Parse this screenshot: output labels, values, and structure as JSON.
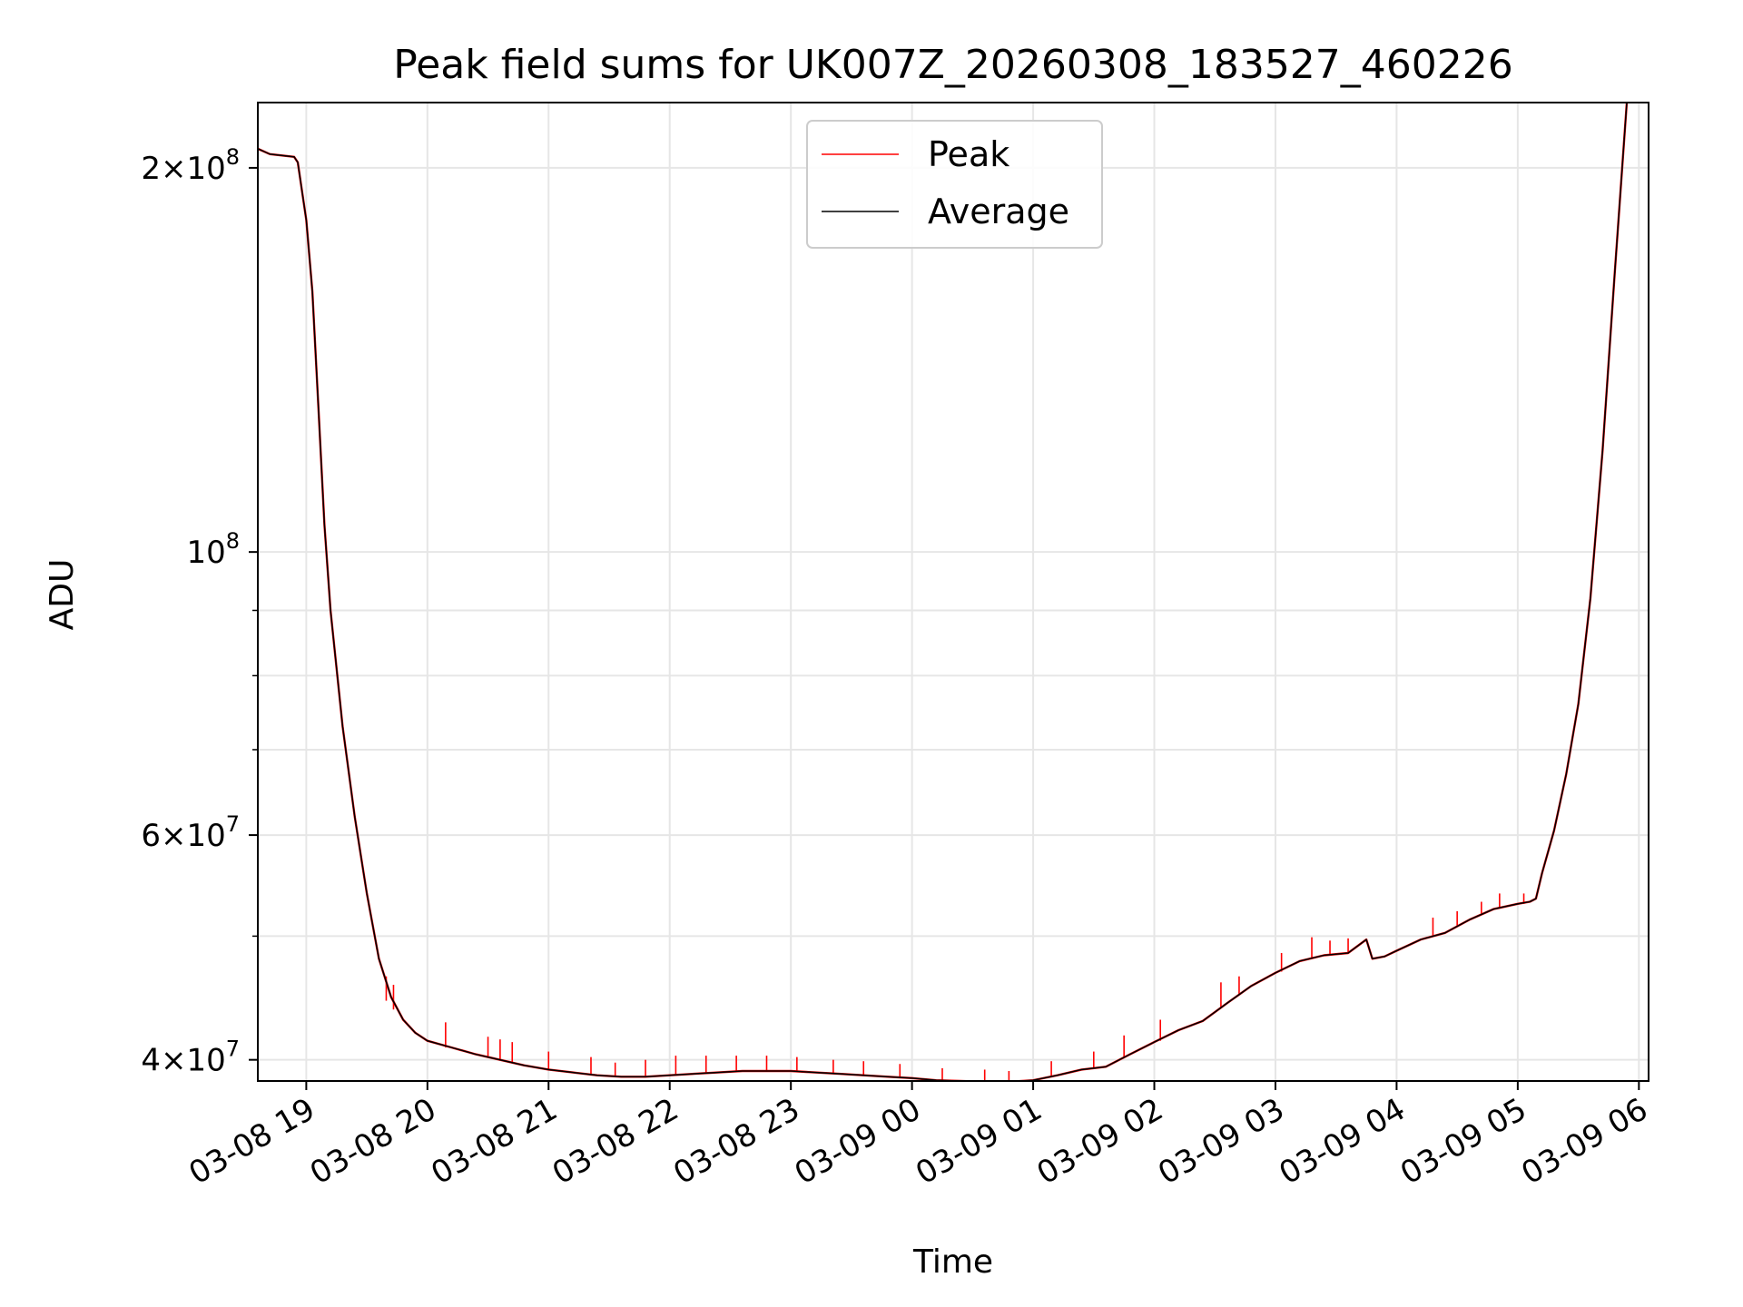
{
  "chart_data": {
    "type": "line",
    "title": "Peak field sums for UK007Z_20260308_183527_460226",
    "xlabel": "Time",
    "ylabel": "ADU",
    "yscale": "log",
    "ylim": [
      38500000,
      225000000
    ],
    "xlim_hours": [
      18.6,
      30.08
    ],
    "grid": true,
    "legend_position": "upper-center",
    "x_ticks": [
      {
        "hour": 19,
        "label": "03-08 19"
      },
      {
        "hour": 20,
        "label": "03-08 20"
      },
      {
        "hour": 21,
        "label": "03-08 21"
      },
      {
        "hour": 22,
        "label": "03-08 22"
      },
      {
        "hour": 23,
        "label": "03-08 23"
      },
      {
        "hour": 24,
        "label": "03-09 00"
      },
      {
        "hour": 25,
        "label": "03-09 01"
      },
      {
        "hour": 26,
        "label": "03-09 02"
      },
      {
        "hour": 27,
        "label": "03-09 03"
      },
      {
        "hour": 28,
        "label": "03-09 04"
      },
      {
        "hour": 29,
        "label": "03-09 05"
      },
      {
        "hour": 30,
        "label": "03-09 06"
      }
    ],
    "y_ticks_major": [
      {
        "value": 40000000,
        "mant": "4",
        "exp": "7"
      },
      {
        "value": 60000000,
        "mant": "6",
        "exp": "7"
      },
      {
        "value": 100000000,
        "mant": "",
        "exp": "8"
      },
      {
        "value": 200000000,
        "mant": "2",
        "exp": "8"
      }
    ],
    "y_ticks_minor": [
      50000000,
      70000000,
      80000000,
      90000000
    ],
    "series": [
      {
        "name": "Peak",
        "color": "#ff0000",
        "points": [
          [
            18.6,
            207000000
          ],
          [
            18.7,
            205000000
          ],
          [
            18.8,
            204500000
          ],
          [
            18.9,
            204000000
          ],
          [
            18.93,
            202000000
          ],
          [
            19.0,
            182000000
          ],
          [
            19.05,
            160000000
          ],
          [
            19.1,
            130000000
          ],
          [
            19.15,
            105000000
          ],
          [
            19.2,
            90000000
          ],
          [
            19.3,
            73000000
          ],
          [
            19.4,
            62000000
          ],
          [
            19.5,
            54000000
          ],
          [
            19.6,
            48000000
          ],
          [
            19.7,
            44800000
          ],
          [
            19.8,
            43000000
          ],
          [
            19.9,
            42000000
          ],
          [
            20.0,
            41400000
          ],
          [
            20.2,
            40900000
          ],
          [
            20.4,
            40400000
          ],
          [
            20.6,
            40000000
          ],
          [
            20.8,
            39600000
          ],
          [
            21.0,
            39300000
          ],
          [
            21.2,
            39100000
          ],
          [
            21.4,
            38900000
          ],
          [
            21.6,
            38800000
          ],
          [
            21.8,
            38800000
          ],
          [
            22.0,
            38900000
          ],
          [
            22.2,
            39000000
          ],
          [
            22.4,
            39100000
          ],
          [
            22.6,
            39200000
          ],
          [
            22.8,
            39200000
          ],
          [
            23.0,
            39200000
          ],
          [
            23.2,
            39100000
          ],
          [
            23.4,
            39000000
          ],
          [
            23.6,
            38900000
          ],
          [
            23.8,
            38800000
          ],
          [
            24.0,
            38700000
          ],
          [
            24.2,
            38550000
          ],
          [
            24.4,
            38500000
          ],
          [
            24.6,
            38450000
          ],
          [
            24.8,
            38450000
          ],
          [
            25.0,
            38550000
          ],
          [
            25.2,
            38900000
          ],
          [
            25.4,
            39300000
          ],
          [
            25.6,
            39500000
          ],
          [
            25.8,
            40400000
          ],
          [
            26.0,
            41300000
          ],
          [
            26.2,
            42200000
          ],
          [
            26.4,
            42900000
          ],
          [
            26.6,
            44300000
          ],
          [
            26.8,
            45700000
          ],
          [
            27.0,
            46800000
          ],
          [
            27.2,
            47800000
          ],
          [
            27.4,
            48300000
          ],
          [
            27.6,
            48500000
          ],
          [
            27.75,
            49700000
          ],
          [
            27.8,
            48000000
          ],
          [
            27.9,
            48200000
          ],
          [
            28.0,
            48700000
          ],
          [
            28.2,
            49700000
          ],
          [
            28.4,
            50300000
          ],
          [
            28.6,
            51500000
          ],
          [
            28.8,
            52500000
          ],
          [
            29.0,
            53000000
          ],
          [
            29.1,
            53200000
          ],
          [
            29.15,
            53500000
          ],
          [
            29.2,
            56000000
          ],
          [
            29.3,
            60500000
          ],
          [
            29.4,
            67000000
          ],
          [
            29.5,
            76000000
          ],
          [
            29.6,
            92000000
          ],
          [
            29.7,
            120000000
          ],
          [
            29.8,
            165000000
          ],
          [
            29.9,
            225000000
          ]
        ],
        "spikes": [
          [
            19.66,
            44500000,
            46500000
          ],
          [
            19.72,
            43800000,
            45800000
          ],
          [
            20.15,
            40900000,
            42800000
          ],
          [
            20.5,
            40200000,
            41700000
          ],
          [
            20.6,
            40000000,
            41500000
          ],
          [
            20.7,
            39800000,
            41300000
          ],
          [
            21.0,
            39300000,
            40600000
          ],
          [
            21.35,
            38950000,
            40200000
          ],
          [
            21.55,
            38800000,
            39800000
          ],
          [
            21.8,
            38800000,
            40000000
          ],
          [
            22.05,
            38900000,
            40300000
          ],
          [
            22.3,
            39050000,
            40300000
          ],
          [
            22.55,
            39150000,
            40300000
          ],
          [
            22.8,
            39200000,
            40300000
          ],
          [
            23.05,
            39200000,
            40200000
          ],
          [
            23.35,
            39050000,
            40000000
          ],
          [
            23.6,
            38900000,
            39900000
          ],
          [
            23.9,
            38750000,
            39700000
          ],
          [
            24.25,
            38550000,
            39400000
          ],
          [
            24.6,
            38450000,
            39300000
          ],
          [
            24.8,
            38450000,
            39200000
          ],
          [
            25.15,
            38800000,
            39900000
          ],
          [
            25.5,
            39400000,
            40600000
          ],
          [
            25.75,
            40200000,
            41800000
          ],
          [
            26.05,
            41400000,
            43000000
          ],
          [
            26.55,
            44000000,
            46000000
          ],
          [
            26.7,
            45000000,
            46500000
          ],
          [
            27.05,
            46900000,
            48500000
          ],
          [
            27.3,
            48100000,
            49900000
          ],
          [
            27.45,
            48300000,
            49600000
          ],
          [
            27.6,
            48500000,
            49800000
          ],
          [
            28.3,
            50000000,
            51700000
          ],
          [
            28.5,
            50900000,
            52300000
          ],
          [
            28.7,
            52000000,
            53200000
          ],
          [
            28.85,
            52600000,
            54000000
          ],
          [
            29.05,
            53000000,
            54000000
          ]
        ]
      },
      {
        "name": "Average",
        "color": "#000000",
        "points": [
          [
            18.6,
            207000000
          ],
          [
            18.7,
            205000000
          ],
          [
            18.8,
            204500000
          ],
          [
            18.9,
            204000000
          ],
          [
            18.93,
            202000000
          ],
          [
            19.0,
            182000000
          ],
          [
            19.05,
            160000000
          ],
          [
            19.1,
            130000000
          ],
          [
            19.15,
            105000000
          ],
          [
            19.2,
            90000000
          ],
          [
            19.3,
            73000000
          ],
          [
            19.4,
            62000000
          ],
          [
            19.5,
            54000000
          ],
          [
            19.6,
            48000000
          ],
          [
            19.7,
            44800000
          ],
          [
            19.8,
            43000000
          ],
          [
            19.9,
            42000000
          ],
          [
            20.0,
            41400000
          ],
          [
            20.2,
            40900000
          ],
          [
            20.4,
            40400000
          ],
          [
            20.6,
            40000000
          ],
          [
            20.8,
            39600000
          ],
          [
            21.0,
            39300000
          ],
          [
            21.2,
            39100000
          ],
          [
            21.4,
            38900000
          ],
          [
            21.6,
            38800000
          ],
          [
            21.8,
            38800000
          ],
          [
            22.0,
            38900000
          ],
          [
            22.2,
            39000000
          ],
          [
            22.4,
            39100000
          ],
          [
            22.6,
            39200000
          ],
          [
            22.8,
            39200000
          ],
          [
            23.0,
            39200000
          ],
          [
            23.2,
            39100000
          ],
          [
            23.4,
            39000000
          ],
          [
            23.6,
            38900000
          ],
          [
            23.8,
            38800000
          ],
          [
            24.0,
            38700000
          ],
          [
            24.2,
            38550000
          ],
          [
            24.4,
            38500000
          ],
          [
            24.6,
            38450000
          ],
          [
            24.8,
            38450000
          ],
          [
            25.0,
            38550000
          ],
          [
            25.2,
            38900000
          ],
          [
            25.4,
            39300000
          ],
          [
            25.6,
            39500000
          ],
          [
            25.8,
            40400000
          ],
          [
            26.0,
            41300000
          ],
          [
            26.2,
            42200000
          ],
          [
            26.4,
            42900000
          ],
          [
            26.6,
            44300000
          ],
          [
            26.8,
            45700000
          ],
          [
            27.0,
            46800000
          ],
          [
            27.2,
            47800000
          ],
          [
            27.4,
            48300000
          ],
          [
            27.6,
            48500000
          ],
          [
            27.75,
            49700000
          ],
          [
            27.8,
            48000000
          ],
          [
            27.9,
            48200000
          ],
          [
            28.0,
            48700000
          ],
          [
            28.2,
            49700000
          ],
          [
            28.4,
            50300000
          ],
          [
            28.6,
            51500000
          ],
          [
            28.8,
            52500000
          ],
          [
            29.0,
            53000000
          ],
          [
            29.1,
            53200000
          ],
          [
            29.15,
            53500000
          ],
          [
            29.2,
            56000000
          ],
          [
            29.3,
            60500000
          ],
          [
            29.4,
            67000000
          ],
          [
            29.5,
            76000000
          ],
          [
            29.6,
            92000000
          ],
          [
            29.7,
            120000000
          ],
          [
            29.8,
            165000000
          ],
          [
            29.9,
            225000000
          ]
        ]
      }
    ]
  }
}
